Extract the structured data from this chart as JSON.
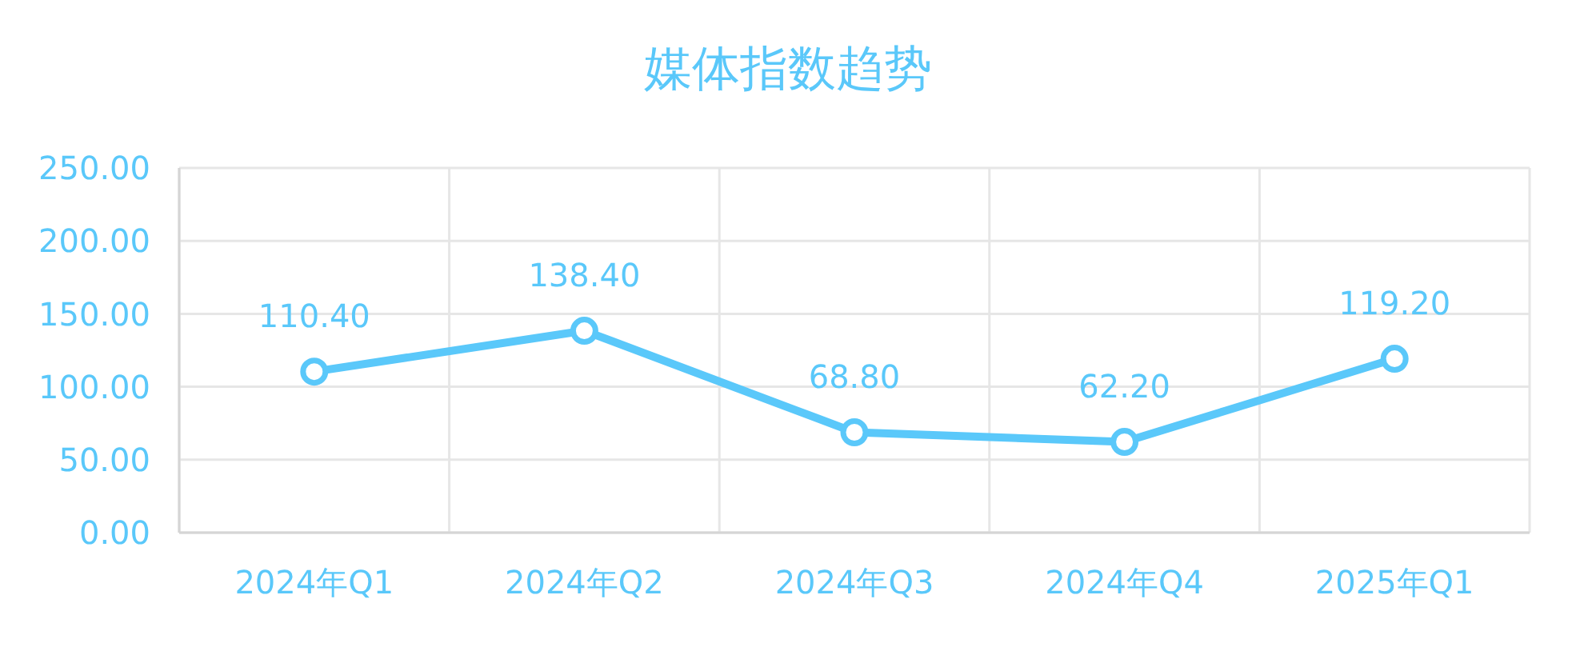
{
  "chart_data": {
    "type": "line",
    "title": "媒体指数趋势",
    "categories": [
      "2024年Q1",
      "2024年Q2",
      "2024年Q3",
      "2024年Q4",
      "2025年Q1"
    ],
    "values": [
      110.4,
      138.4,
      68.8,
      62.2,
      119.2
    ],
    "value_labels": [
      "110.40",
      "138.40",
      "68.80",
      "62.20",
      "119.20"
    ],
    "color": "#5ac8fa",
    "marker": "circle",
    "line_style": "solid",
    "ylim": [
      0,
      250
    ],
    "yticks": [
      {
        "value": 0,
        "label": "0.00"
      },
      {
        "value": 50,
        "label": "50.00"
      },
      {
        "value": 100,
        "label": "100.00"
      },
      {
        "value": 150,
        "label": "150.00"
      },
      {
        "value": 200,
        "label": "200.00"
      },
      {
        "value": 250,
        "label": "250.00"
      }
    ],
    "grid": true
  }
}
